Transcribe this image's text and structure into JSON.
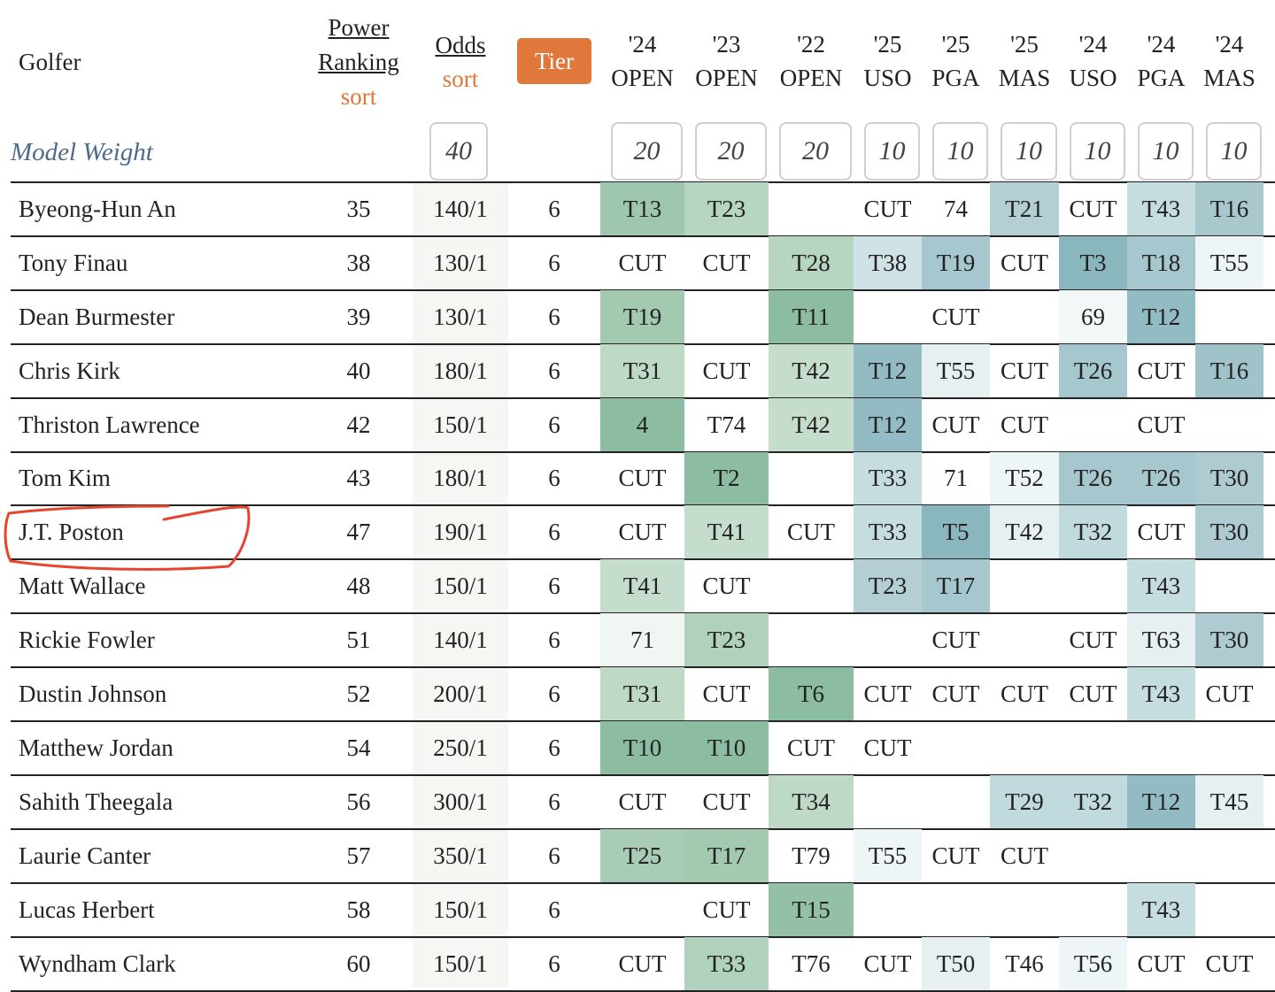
{
  "header": {
    "golfer": "Golfer",
    "power_ranking": "Power Ranking",
    "power_sort": "sort",
    "odds": "Odds",
    "odds_sort": "sort",
    "tier": "Tier",
    "events": [
      {
        "year": "'24",
        "event": "OPEN"
      },
      {
        "year": "'23",
        "event": "OPEN"
      },
      {
        "year": "'22",
        "event": "OPEN"
      },
      {
        "year": "'25",
        "event": "USO"
      },
      {
        "year": "'25",
        "event": "PGA"
      },
      {
        "year": "'25",
        "event": "MAS"
      },
      {
        "year": "'24",
        "event": "USO"
      },
      {
        "year": "'24",
        "event": "PGA"
      },
      {
        "year": "'24",
        "event": "MAS"
      }
    ]
  },
  "model_weight": {
    "label": "Model Weight",
    "odds": 40,
    "events": [
      20,
      20,
      20,
      10,
      10,
      10,
      10,
      10,
      10
    ]
  },
  "rows": [
    {
      "name": "Byeong-Hun An",
      "rank": 35,
      "odds": "140/1",
      "tier": 6,
      "results": [
        "T13",
        "T23",
        null,
        "CUT",
        "74",
        "T21",
        "CUT",
        "T43",
        "T16"
      ],
      "shades": [
        "#9fc6ae",
        "#b6d6c1",
        null,
        null,
        null,
        "#b3cfd4",
        null,
        "#c6dde0",
        "#a9c8ce"
      ]
    },
    {
      "name": "Tony Finau",
      "rank": 38,
      "odds": "130/1",
      "tier": 6,
      "results": [
        "CUT",
        "CUT",
        "T28",
        "T38",
        "T19",
        "CUT",
        "T3",
        "T18",
        "T55"
      ],
      "shades": [
        null,
        null,
        "#b6d6c1",
        "#cfe2e5",
        "#a6c7cd",
        null,
        "#8ab6be",
        "#a6c7cd",
        "#eef5f6"
      ]
    },
    {
      "name": "Dean Burmester",
      "rank": 39,
      "odds": "130/1",
      "tier": 6,
      "results": [
        "T19",
        null,
        "T11",
        null,
        "CUT",
        null,
        "69",
        "T12",
        null
      ],
      "shades": [
        "#a3c9b1",
        null,
        "#8cbca1",
        null,
        null,
        null,
        "#f2f7f8",
        "#93bbc3",
        null
      ]
    },
    {
      "name": "Chris Kirk",
      "rank": 40,
      "odds": "180/1",
      "tier": 6,
      "results": [
        "T31",
        "CUT",
        "T42",
        "T12",
        "T55",
        "CUT",
        "T26",
        "CUT",
        "T16"
      ],
      "shades": [
        "#bedac7",
        null,
        "#c4ddcc",
        "#93bbc3",
        "#e6f0f1",
        null,
        "#a6c7cd",
        null,
        "#a0c3ca"
      ]
    },
    {
      "name": "Thriston Lawrence",
      "rank": 42,
      "odds": "150/1",
      "tier": 6,
      "results": [
        "4",
        "T74",
        "T42",
        "T12",
        "CUT",
        "CUT",
        null,
        "CUT",
        null
      ],
      "shades": [
        "#8cbca1",
        null,
        "#c4ddcc",
        "#93bbc3",
        null,
        null,
        null,
        null,
        null
      ]
    },
    {
      "name": "Tom Kim",
      "rank": 43,
      "odds": "180/1",
      "tier": 6,
      "results": [
        "CUT",
        "T2",
        null,
        "T33",
        "71",
        "T52",
        "T26",
        "T26",
        "T30"
      ],
      "shades": [
        null,
        "#8cbca1",
        null,
        "#c6dde0",
        null,
        "#eef5f6",
        "#a6c7cd",
        "#a6c7cd",
        "#adcbd1"
      ]
    },
    {
      "name": "J.T. Poston",
      "rank": 47,
      "odds": "190/1",
      "tier": 6,
      "results": [
        "CUT",
        "T41",
        "CUT",
        "T33",
        "T5",
        "T42",
        "T32",
        "CUT",
        "T30"
      ],
      "shades": [
        null,
        "#c4ddcc",
        null,
        "#c6dde0",
        "#8ab6be",
        "#e6f0f1",
        "#c1dadd",
        null,
        "#adcbd1"
      ]
    },
    {
      "name": "Matt Wallace",
      "rank": 48,
      "odds": "150/1",
      "tier": 6,
      "results": [
        "T41",
        "CUT",
        null,
        "T23",
        "T17",
        null,
        null,
        "T43",
        null
      ],
      "shades": [
        "#c4ddcc",
        null,
        null,
        "#b3cfd4",
        "#a6c7cd",
        null,
        null,
        "#c6dde0",
        null
      ]
    },
    {
      "name": "Rickie Fowler",
      "rank": 51,
      "odds": "140/1",
      "tier": 6,
      "results": [
        "71",
        "T23",
        null,
        null,
        "CUT",
        null,
        "CUT",
        "T63",
        "T30"
      ],
      "shades": [
        "#f0f7f2",
        "#b0d2bc",
        null,
        null,
        null,
        null,
        null,
        "#e6f0f1",
        "#adcbd1"
      ]
    },
    {
      "name": "Dustin Johnson",
      "rank": 52,
      "odds": "200/1",
      "tier": 6,
      "results": [
        "T31",
        "CUT",
        "T6",
        "CUT",
        "CUT",
        "CUT",
        "CUT",
        "T43",
        "CUT"
      ],
      "shades": [
        "#bedac7",
        null,
        "#8cbca1",
        null,
        null,
        null,
        null,
        "#c6dde0",
        null
      ]
    },
    {
      "name": "Matthew Jordan",
      "rank": 54,
      "odds": "250/1",
      "tier": 6,
      "results": [
        "T10",
        "T10",
        "CUT",
        "CUT",
        null,
        null,
        null,
        null,
        null
      ],
      "shades": [
        "#8cbca1",
        "#8cbca1",
        null,
        null,
        null,
        null,
        null,
        null,
        null
      ]
    },
    {
      "name": "Sahith Theegala",
      "rank": 56,
      "odds": "300/1",
      "tier": 6,
      "results": [
        "CUT",
        "CUT",
        "T34",
        null,
        null,
        "T29",
        "T32",
        "T12",
        "T45"
      ],
      "shades": [
        null,
        null,
        "#bedac7",
        null,
        null,
        "#c1dadd",
        "#c1dadd",
        "#93bbc3",
        "#e6f0f1"
      ]
    },
    {
      "name": "Laurie Canter",
      "rank": 57,
      "odds": "350/1",
      "tier": 6,
      "results": [
        "T25",
        "T17",
        "T79",
        "T55",
        "CUT",
        "CUT",
        null,
        null,
        null
      ],
      "shades": [
        "#a8ccb5",
        "#a3c9b1",
        null,
        "#eef5f6",
        null,
        null,
        null,
        null,
        null
      ]
    },
    {
      "name": "Lucas Herbert",
      "rank": 58,
      "odds": "150/1",
      "tier": 6,
      "results": [
        null,
        "CUT",
        "T15",
        null,
        null,
        null,
        null,
        "T43",
        null
      ],
      "shades": [
        null,
        null,
        "#93c0a6",
        null,
        null,
        null,
        null,
        "#c6dde0",
        null
      ]
    },
    {
      "name": "Wyndham Clark",
      "rank": 60,
      "odds": "150/1",
      "tier": 6,
      "results": [
        "CUT",
        "T33",
        "T76",
        "CUT",
        "T50",
        "T46",
        "T56",
        "CUT",
        "CUT"
      ],
      "shades": [
        null,
        "#b0d2bc",
        null,
        null,
        "#e6f0f1",
        null,
        "#eef5f6",
        null,
        null
      ]
    }
  ]
}
